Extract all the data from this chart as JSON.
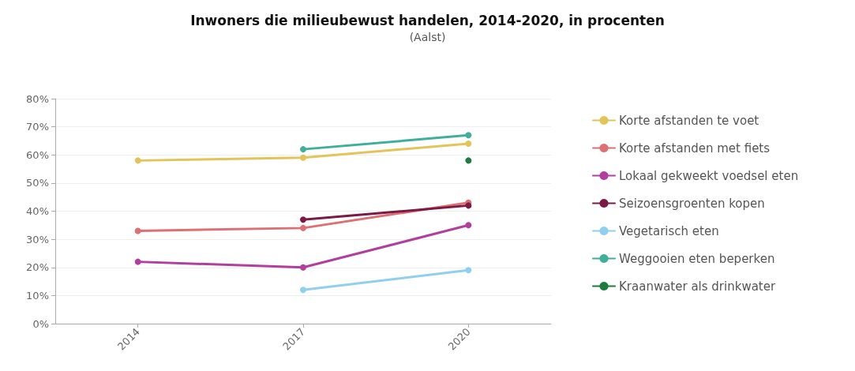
{
  "chart_data": {
    "type": "line",
    "title": "Inwoners die milieubewust handelen, 2014-2020, in procenten",
    "subtitle": "(Aalst)",
    "categories": [
      "2014",
      "2017",
      "2020"
    ],
    "series": [
      {
        "name": "Korte afstanden te voet",
        "color": "#e3c45a",
        "values": [
          58,
          59,
          64
        ]
      },
      {
        "name": "Korte afstanden met fiets",
        "color": "#de6f73",
        "values": [
          33,
          34,
          43
        ]
      },
      {
        "name": "Lokaal gekweekt voedsel eten",
        "color": "#b23f9e",
        "values": [
          22,
          20,
          35
        ]
      },
      {
        "name": "Seizoensgroenten kopen",
        "color": "#7a1a45",
        "values": [
          null,
          37,
          42
        ]
      },
      {
        "name": "Vegetarisch eten",
        "color": "#8fd0ef",
        "values": [
          null,
          12,
          19
        ]
      },
      {
        "name": "Weggooien eten beperken",
        "color": "#3fae9a",
        "values": [
          null,
          62,
          67
        ]
      },
      {
        "name": "Kraanwater als drinkwater",
        "color": "#1e7a3e",
        "values": [
          null,
          null,
          58
        ]
      }
    ],
    "ylim": [
      0,
      80
    ],
    "yticks": [
      {
        "value": 0,
        "label": "0%"
      },
      {
        "value": 10,
        "label": "10%"
      },
      {
        "value": 20,
        "label": "20%"
      },
      {
        "value": 30,
        "label": "30%"
      },
      {
        "value": 40,
        "label": "40%"
      },
      {
        "value": 50,
        "label": "50%"
      },
      {
        "value": 60,
        "label": "60%"
      },
      {
        "value": 70,
        "label": "70%"
      },
      {
        "value": 80,
        "label": "80%"
      }
    ],
    "grid": "y",
    "legend": "right",
    "marker": "circle",
    "line_style": "solid"
  }
}
